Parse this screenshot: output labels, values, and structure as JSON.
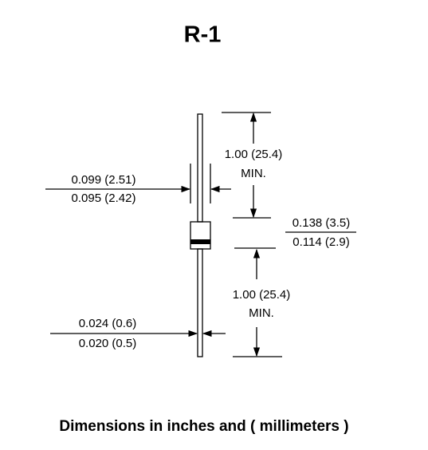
{
  "title": "R-1",
  "upper_lead": {
    "line1": "1.00 (25.4)",
    "line2": "MIN."
  },
  "body_diameter": {
    "max": "0.099 (2.51)",
    "min": "0.095 (2.42)"
  },
  "body_length": {
    "max": "0.138 (3.5)",
    "min": "0.114 (2.9)"
  },
  "lower_lead": {
    "line1": "1.00 (25.4)",
    "line2": "MIN."
  },
  "lead_diameter": {
    "max": "0.024 (0.6)",
    "min": "0.020 (0.5)"
  },
  "footer": "Dimensions in inches and ( millimeters )"
}
